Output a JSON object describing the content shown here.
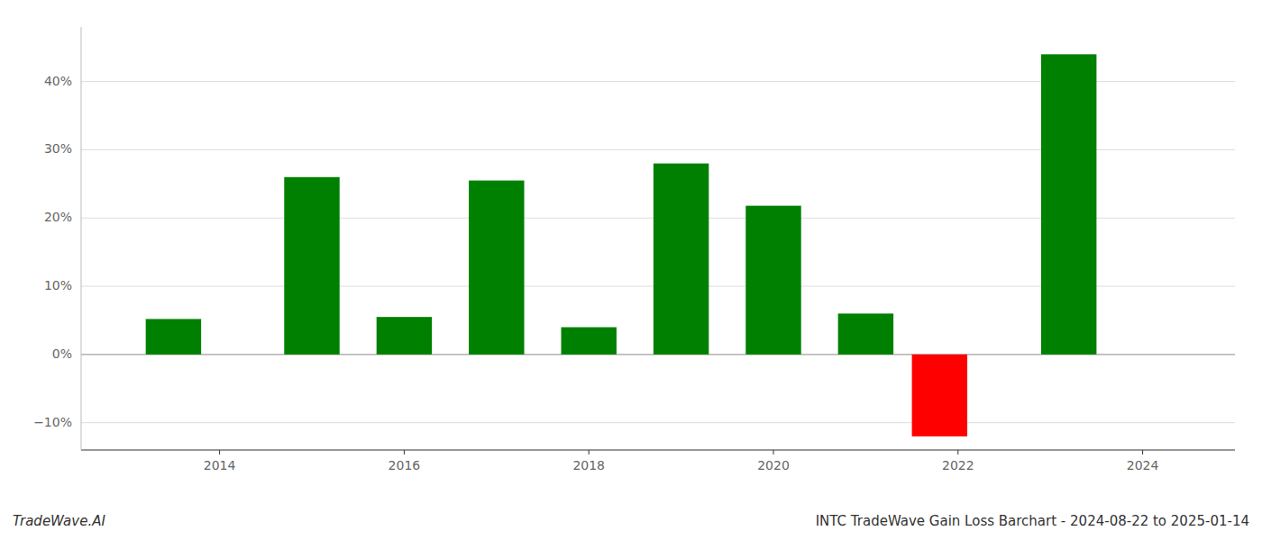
{
  "chart_data": {
    "type": "bar",
    "title": "INTC TradeWave Gain Loss Barchart - 2024-08-22 to 2025-01-14",
    "annotations": [
      "TradeWave.AI"
    ],
    "x": [
      2013.5,
      2015.0,
      2016.0,
      2017.0,
      2018.0,
      2019.0,
      2020.0,
      2021.0,
      2021.8,
      2023.2
    ],
    "values": [
      5.2,
      26.0,
      5.5,
      25.5,
      4.0,
      28.0,
      21.8,
      6.0,
      -12.0,
      44.0
    ],
    "colors": [
      "#008000",
      "#008000",
      "#008000",
      "#008000",
      "#008000",
      "#008000",
      "#008000",
      "#008000",
      "#ff0000",
      "#008000"
    ],
    "xlim": [
      2012.5,
      2025.0
    ],
    "ylim": [
      -14,
      48
    ],
    "xticks": [
      2014,
      2016,
      2018,
      2020,
      2022,
      2024
    ],
    "yticks": [
      {
        "value": -10,
        "label": "−10%"
      },
      {
        "value": 0,
        "label": "0%"
      },
      {
        "value": 10,
        "label": "10%"
      },
      {
        "value": 20,
        "label": "20%"
      },
      {
        "value": 30,
        "label": "30%"
      },
      {
        "value": 40,
        "label": "40%"
      }
    ],
    "grid": true
  }
}
